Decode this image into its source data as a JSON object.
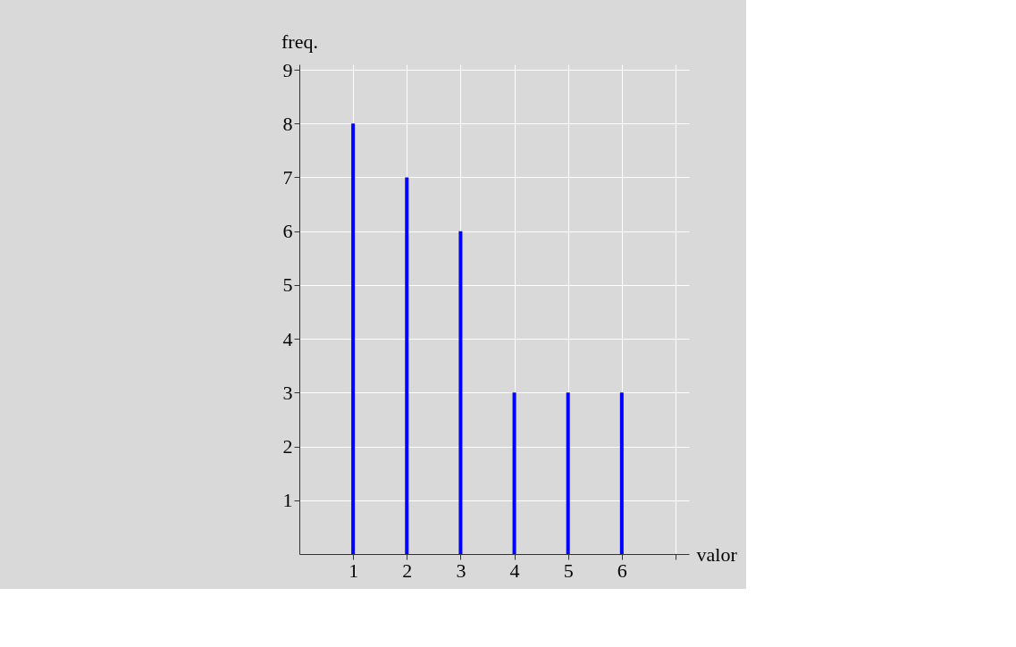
{
  "chart_data": {
    "type": "bar",
    "xlabel": "valor",
    "ylabel": "freq.",
    "x": [
      1,
      2,
      3,
      4,
      5,
      6
    ],
    "values": [
      8,
      7,
      6,
      3,
      3,
      3
    ],
    "color": "#0000ff",
    "xlim": [
      0,
      7.25
    ],
    "ylim": [
      0,
      9.1
    ],
    "xticks": [
      1,
      2,
      3,
      4,
      5,
      6,
      {
        "value": 7,
        "label": null
      }
    ],
    "yticks": [
      1,
      2,
      3,
      4,
      5,
      6,
      7,
      8,
      9
    ],
    "grid": true
  }
}
